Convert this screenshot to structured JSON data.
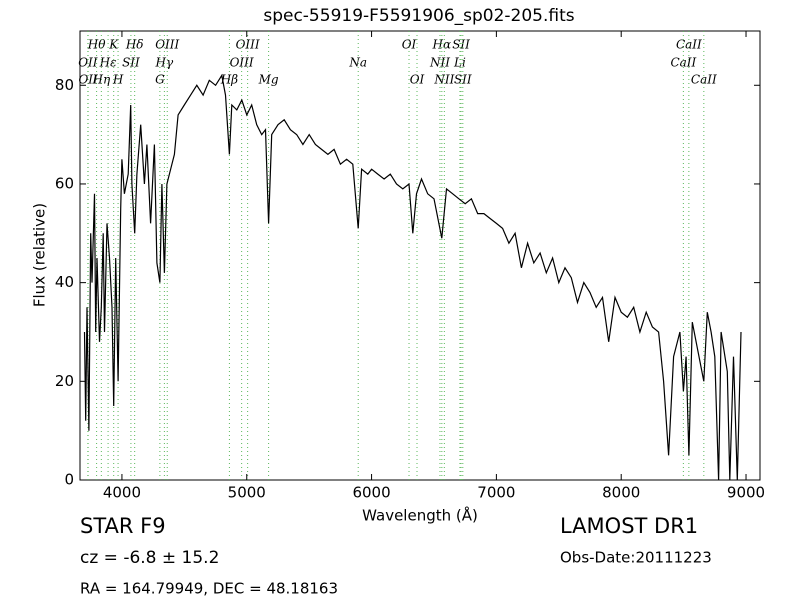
{
  "chart_data": {
    "type": "line",
    "title": "spec-55919-F5591906_sp02-205.fits",
    "xlabel": "Wavelength (Å)",
    "ylabel": "Flux (relative)",
    "xlim": [
      3664,
      9112
    ],
    "ylim": [
      0,
      91
    ],
    "xticks": [
      4000,
      5000,
      6000,
      7000,
      8000,
      9000
    ],
    "yticks": [
      0,
      20,
      40,
      60,
      80
    ],
    "grid": false,
    "color": "#000000",
    "line_color": "#5cb85c",
    "x": [
      3700,
      3710,
      3720,
      3735,
      3750,
      3760,
      3780,
      3790,
      3800,
      3820,
      3835,
      3850,
      3860,
      3880,
      3900,
      3920,
      3934,
      3950,
      3969,
      3990,
      4000,
      4020,
      4050,
      4070,
      4080,
      4102,
      4120,
      4150,
      4180,
      4200,
      4230,
      4260,
      4280,
      4304,
      4320,
      4340,
      4360,
      4380,
      4420,
      4450,
      4500,
      4550,
      4600,
      4650,
      4700,
      4750,
      4800,
      4830,
      4861,
      4880,
      4920,
      4960,
      5000,
      5040,
      5080,
      5120,
      5150,
      5175,
      5200,
      5250,
      5300,
      5350,
      5400,
      5450,
      5500,
      5550,
      5600,
      5650,
      5700,
      5750,
      5800,
      5850,
      5893,
      5920,
      5970,
      6000,
      6050,
      6100,
      6150,
      6200,
      6250,
      6300,
      6330,
      6360,
      6400,
      6450,
      6500,
      6563,
      6600,
      6650,
      6700,
      6750,
      6800,
      6850,
      6900,
      6950,
      7000,
      7050,
      7100,
      7150,
      7200,
      7250,
      7300,
      7350,
      7400,
      7450,
      7500,
      7550,
      7600,
      7650,
      7700,
      7750,
      7800,
      7850,
      7900,
      7950,
      8000,
      8050,
      8100,
      8150,
      8200,
      8250,
      8300,
      8340,
      8380,
      8420,
      8470,
      8498,
      8520,
      8542,
      8570,
      8600,
      8662,
      8690,
      8720,
      8750,
      8780,
      8800,
      8850,
      8870,
      8900,
      8930,
      8960
    ],
    "values": [
      30,
      12,
      35,
      10,
      50,
      40,
      58,
      30,
      45,
      28,
      35,
      50,
      30,
      52,
      45,
      35,
      15,
      45,
      20,
      55,
      65,
      58,
      62,
      76,
      60,
      50,
      62,
      72,
      60,
      68,
      52,
      68,
      44,
      40,
      60,
      42,
      60,
      62,
      66,
      74,
      76,
      78,
      80,
      78,
      81,
      80,
      82,
      78,
      66,
      76,
      75,
      77,
      74,
      76,
      72,
      70,
      71,
      52,
      70,
      72,
      73,
      71,
      70,
      68,
      70,
      68,
      67,
      66,
      67,
      64,
      65,
      64,
      51,
      63,
      62,
      63,
      62,
      61,
      62,
      60,
      59,
      60,
      50,
      58,
      61,
      58,
      57,
      49,
      59,
      58,
      57,
      56,
      57,
      54,
      54,
      53,
      52,
      51,
      48,
      50,
      43,
      48,
      44,
      46,
      42,
      45,
      40,
      43,
      41,
      36,
      40,
      38,
      35,
      37,
      28,
      37,
      34,
      33,
      35,
      30,
      34,
      31,
      30,
      20,
      5,
      25,
      30,
      18,
      25,
      5,
      32,
      28,
      20,
      34,
      30,
      25,
      0,
      30,
      22,
      0,
      25,
      0,
      30
    ],
    "lines": [
      {
        "name": "Hθ",
        "wavelength": 3797
      },
      {
        "name": "K",
        "wavelength": 3934
      },
      {
        "name": "Hδ",
        "wavelength": 4102
      },
      {
        "name": "OIII",
        "wavelength": 4363
      },
      {
        "name": "OIII",
        "wavelength": 5007
      },
      {
        "name": "OI",
        "wavelength": 6300
      },
      {
        "name": "Hα",
        "wavelength": 6563
      },
      {
        "name": "SII",
        "wavelength": 6717
      },
      {
        "name": "CaII",
        "wavelength": 8542
      },
      {
        "name": "OII",
        "wavelength": 3727
      },
      {
        "name": "Hε",
        "wavelength": 3889
      },
      {
        "name": "SII",
        "wavelength": 4072
      },
      {
        "name": "Hγ",
        "wavelength": 4340
      },
      {
        "name": "OIII",
        "wavelength": 4959
      },
      {
        "name": "Na",
        "wavelength": 5893
      },
      {
        "name": "NII",
        "wavelength": 6548
      },
      {
        "name": "Li",
        "wavelength": 6708
      },
      {
        "name": "CaII",
        "wavelength": 8498
      },
      {
        "name": "OII",
        "wavelength": 3729
      },
      {
        "name": "Hη",
        "wavelength": 3835
      },
      {
        "name": "H",
        "wavelength": 3969
      },
      {
        "name": "G",
        "wavelength": 4304
      },
      {
        "name": "Hβ",
        "wavelength": 4861
      },
      {
        "name": "Mg",
        "wavelength": 5175
      },
      {
        "name": "OI",
        "wavelength": 6364
      },
      {
        "name": "NII",
        "wavelength": 6583
      },
      {
        "name": "SII",
        "wavelength": 6731
      },
      {
        "name": "CaII",
        "wavelength": 8662
      }
    ],
    "class_label": "STAR   F9",
    "cz": "cz = -6.8 ± 15.2",
    "coords": "RA = 164.79949, DEC = 48.18163",
    "release": "LAMOST DR1",
    "obs_date": "Obs-Date:20111223"
  }
}
